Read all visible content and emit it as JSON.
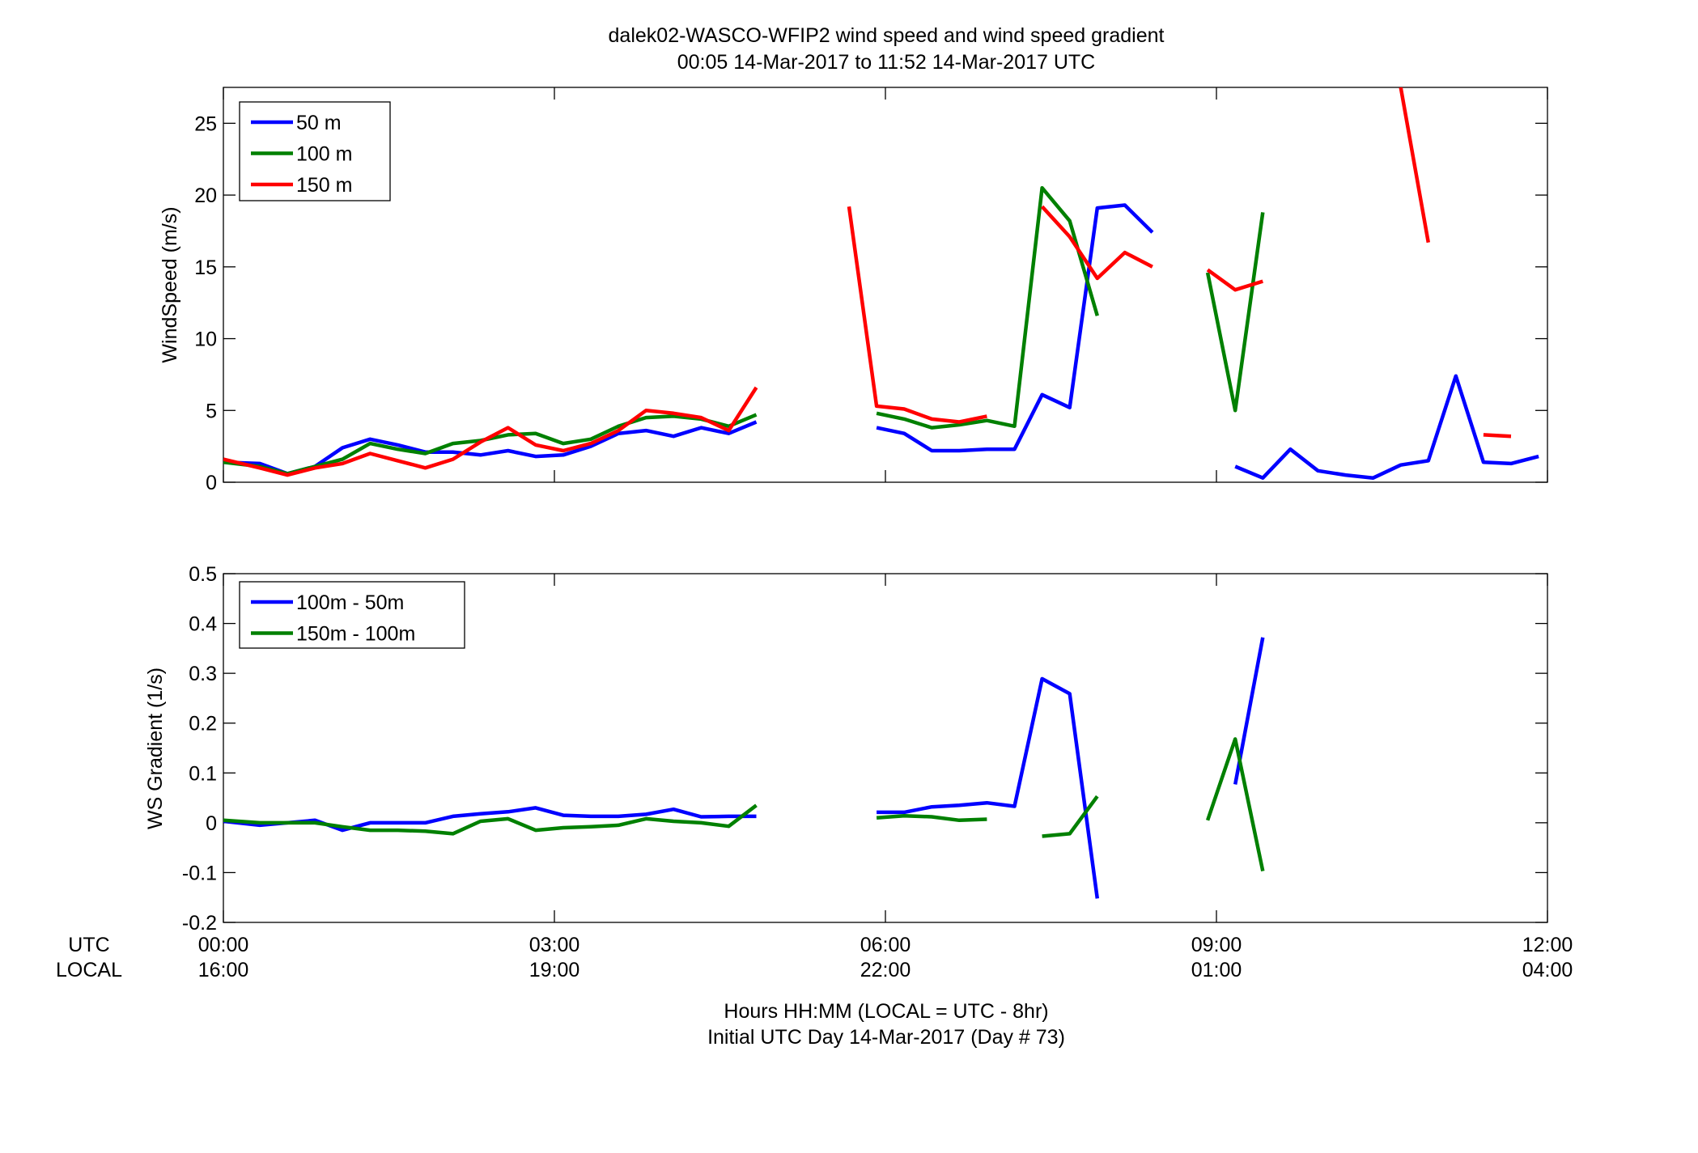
{
  "title": {
    "line1": "dalek02-WASCO-WFIP2  wind speed and wind speed gradient",
    "line2": "00:05 14-Mar-2017 to 11:52 14-Mar-2017  UTC"
  },
  "xaxis": {
    "row_label_utc": "UTC",
    "row_label_local": "LOCAL",
    "ticks_utc": [
      "00:00",
      "03:00",
      "06:00",
      "09:00",
      "12:00"
    ],
    "ticks_local": [
      "16:00",
      "19:00",
      "22:00",
      "01:00",
      "04:00"
    ],
    "label_line1": "Hours HH:MM  (LOCAL = UTC - 8hr)",
    "label_line2": "Initial UTC Day 14-Mar-2017 (Day # 73)"
  },
  "chart_data": [
    {
      "type": "line",
      "panel": "top",
      "ylabel": "WindSpeed (m/s)",
      "xlim": [
        0,
        12
      ],
      "ylim": [
        0,
        27.5
      ],
      "yticks": [
        0,
        5,
        10,
        15,
        20,
        25
      ],
      "ytick_labels": [
        "0",
        "5",
        "10",
        "15",
        "20",
        "25"
      ],
      "legend_position": "top-left",
      "series": [
        {
          "name": "50 m",
          "color": "#0000ff",
          "x": [
            0.0,
            0.33,
            0.58,
            0.83,
            1.08,
            1.33,
            1.58,
            1.83,
            2.08,
            2.33,
            2.58,
            2.83,
            3.08,
            3.33,
            3.58,
            3.83,
            4.08,
            4.33,
            4.58,
            4.83,
            null,
            5.92,
            6.17,
            6.42,
            6.67,
            6.92,
            7.17,
            7.42,
            7.67,
            7.92,
            8.17,
            8.42,
            null,
            9.17,
            9.42,
            9.67,
            9.92,
            10.17,
            10.42,
            10.67,
            10.92,
            11.17,
            11.42,
            11.67,
            11.92
          ],
          "y": [
            1.4,
            1.3,
            0.6,
            1.1,
            2.4,
            3.0,
            2.6,
            2.1,
            2.1,
            1.9,
            2.2,
            1.8,
            1.9,
            2.5,
            3.4,
            3.6,
            3.2,
            3.8,
            3.4,
            4.2,
            null,
            3.8,
            3.4,
            2.2,
            2.2,
            2.3,
            2.3,
            6.1,
            5.2,
            19.1,
            19.3,
            17.4,
            null,
            1.1,
            0.3,
            2.3,
            0.8,
            0.5,
            0.3,
            1.2,
            1.5,
            7.4,
            1.4,
            1.3,
            1.8
          ]
        },
        {
          "name": "100 m",
          "color": "#008000",
          "x": [
            0.0,
            0.33,
            0.58,
            0.83,
            1.08,
            1.33,
            1.58,
            1.83,
            2.08,
            2.33,
            2.58,
            2.83,
            3.08,
            3.33,
            3.58,
            3.83,
            4.08,
            4.33,
            4.58,
            4.83,
            null,
            5.92,
            6.17,
            6.42,
            6.67,
            6.92,
            7.17,
            7.42,
            7.67,
            7.92,
            null,
            8.92,
            9.17,
            9.42
          ],
          "y": [
            1.4,
            1.1,
            0.6,
            1.1,
            1.6,
            2.7,
            2.3,
            2.0,
            2.7,
            2.9,
            3.3,
            3.4,
            2.7,
            3.0,
            3.9,
            4.5,
            4.6,
            4.4,
            3.9,
            4.7,
            null,
            4.8,
            4.4,
            3.8,
            4.0,
            4.3,
            3.9,
            20.5,
            18.2,
            11.6,
            null,
            14.6,
            5.0,
            18.8
          ]
        },
        {
          "name": "150 m",
          "color": "#ff0000",
          "x": [
            0.0,
            0.33,
            0.58,
            0.83,
            1.08,
            1.33,
            1.58,
            1.83,
            2.08,
            2.33,
            2.58,
            2.83,
            3.08,
            3.33,
            3.58,
            3.83,
            4.08,
            4.33,
            4.58,
            4.83,
            null,
            5.67,
            5.92,
            6.17,
            6.42,
            6.67,
            6.92,
            null,
            7.42,
            7.67,
            7.92,
            8.17,
            8.42,
            null,
            8.92,
            9.17,
            9.42,
            null,
            10.67,
            10.92,
            null,
            11.42,
            11.67
          ],
          "y": [
            1.6,
            1.0,
            0.5,
            1.0,
            1.3,
            2.0,
            1.5,
            1.0,
            1.6,
            2.8,
            3.8,
            2.6,
            2.2,
            2.7,
            3.6,
            5.0,
            4.8,
            4.5,
            3.6,
            6.6,
            null,
            19.2,
            5.3,
            5.1,
            4.4,
            4.2,
            4.6,
            null,
            19.2,
            17.1,
            14.2,
            16.0,
            15.0,
            null,
            14.8,
            13.4,
            14.0,
            null,
            27.5,
            16.7,
            null,
            3.3,
            3.2
          ]
        }
      ]
    },
    {
      "type": "line",
      "panel": "bottom",
      "ylabel": "WS Gradient (1/s)",
      "xlim": [
        0,
        12
      ],
      "ylim": [
        -0.2,
        0.5
      ],
      "yticks": [
        -0.2,
        -0.1,
        0,
        0.1,
        0.2,
        0.3,
        0.4,
        0.5
      ],
      "ytick_labels": [
        "-0.2",
        "-0.1",
        "0",
        "0.1",
        "0.2",
        "0.3",
        "0.4",
        "0.5"
      ],
      "legend_position": "top-left",
      "series": [
        {
          "name": "100m - 50m",
          "color": "#0000ff",
          "x": [
            0.0,
            0.33,
            0.58,
            0.83,
            1.08,
            1.33,
            1.58,
            1.83,
            2.08,
            2.33,
            2.58,
            2.83,
            3.08,
            3.33,
            3.58,
            3.83,
            4.08,
            4.33,
            4.58,
            4.83,
            null,
            5.92,
            6.17,
            6.42,
            6.67,
            6.92,
            7.17,
            7.42,
            7.67,
            7.92,
            null,
            9.17,
            9.42
          ],
          "y": [
            0.003,
            -0.005,
            0.0,
            0.005,
            -0.015,
            0.0,
            0.0,
            0.0,
            0.013,
            0.018,
            0.022,
            0.03,
            0.015,
            0.013,
            0.013,
            0.017,
            0.027,
            0.012,
            0.013,
            0.013,
            null,
            0.021,
            0.021,
            0.032,
            0.035,
            0.04,
            0.033,
            0.289,
            0.259,
            -0.152,
            null,
            0.077,
            0.372
          ]
        },
        {
          "name": "150m - 100m",
          "color": "#008000",
          "x": [
            0.0,
            0.33,
            0.58,
            0.83,
            1.08,
            1.33,
            1.58,
            1.83,
            2.08,
            2.33,
            2.58,
            2.83,
            3.08,
            3.33,
            3.58,
            3.83,
            4.08,
            4.33,
            4.58,
            4.83,
            null,
            5.92,
            6.17,
            6.42,
            6.67,
            6.92,
            null,
            7.42,
            7.67,
            7.92,
            null,
            8.92,
            9.17,
            9.42
          ],
          "y": [
            0.005,
            0.0,
            0.0,
            0.0,
            -0.008,
            -0.015,
            -0.015,
            -0.017,
            -0.022,
            0.003,
            0.008,
            -0.015,
            -0.01,
            -0.008,
            -0.005,
            0.008,
            0.003,
            0.0,
            -0.007,
            0.035,
            null,
            0.01,
            0.014,
            0.012,
            0.005,
            0.007,
            null,
            -0.027,
            -0.022,
            0.053,
            null,
            0.005,
            0.168,
            -0.097
          ]
        }
      ]
    }
  ]
}
